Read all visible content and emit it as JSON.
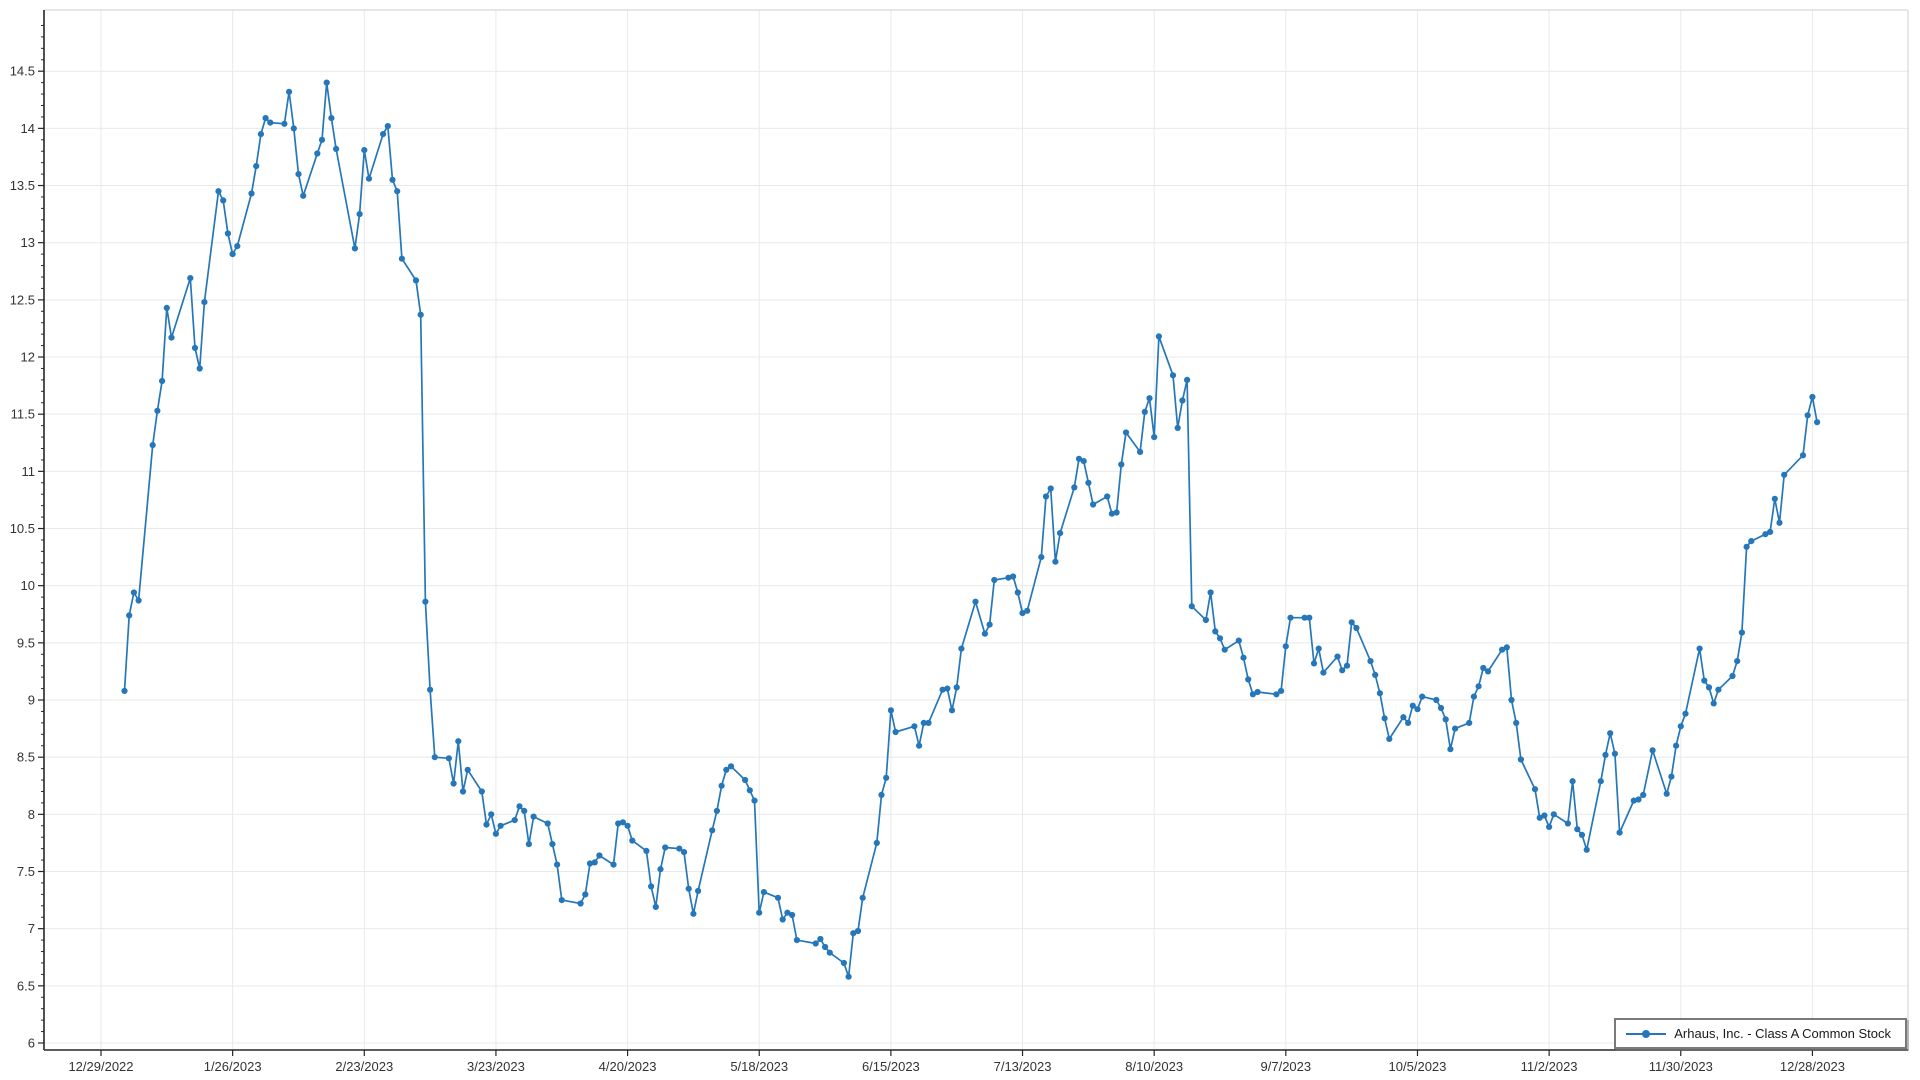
{
  "accent_color": "#2577b9",
  "grid_color": "#e9e9e9",
  "spine_color": "#262626",
  "frame_color": "#cfcfcf",
  "legend": {
    "label": "Arhaus, Inc. - Class A Common Stock"
  },
  "chart_data": {
    "type": "line",
    "title": "",
    "xlabel": "",
    "ylabel": "",
    "grid": true,
    "legend_position": "bottom-right",
    "ylim": [
      6,
      14.5
    ],
    "y_tick_step": 0.5,
    "y_ticks": [
      "6",
      "6.5",
      "7",
      "7.5",
      "8",
      "8.5",
      "9",
      "9.5",
      "10",
      "10.5",
      "11",
      "11.5",
      "12",
      "12.5",
      "13",
      "13.5",
      "14",
      "14.5"
    ],
    "x_ticks": [
      "12/29/2022",
      "1/26/2023",
      "2/23/2023",
      "3/23/2023",
      "4/20/2023",
      "5/18/2023",
      "6/15/2023",
      "7/13/2023",
      "8/10/2023",
      "9/7/2023",
      "10/5/2023",
      "11/2/2023",
      "11/30/2023",
      "12/28/2023"
    ],
    "series": [
      {
        "name": "Arhaus, Inc. - Class A Common Stock",
        "color": "#2577b9",
        "marker": "circle",
        "data": [
          [
            "1/3/2023",
            9.08
          ],
          [
            "1/4/2023",
            9.74
          ],
          [
            "1/5/2023",
            9.94
          ],
          [
            "1/6/2023",
            9.87
          ],
          [
            "1/9/2023",
            11.23
          ],
          [
            "1/10/2023",
            11.53
          ],
          [
            "1/11/2023",
            11.79
          ],
          [
            "1/12/2023",
            12.43
          ],
          [
            "1/13/2023",
            12.17
          ],
          [
            "1/17/2023",
            12.69
          ],
          [
            "1/18/2023",
            12.08
          ],
          [
            "1/19/2023",
            11.9
          ],
          [
            "1/20/2023",
            12.48
          ],
          [
            "1/23/2023",
            13.45
          ],
          [
            "1/24/2023",
            13.37
          ],
          [
            "1/25/2023",
            13.08
          ],
          [
            "1/26/2023",
            12.9
          ],
          [
            "1/27/2023",
            12.97
          ],
          [
            "1/30/2023",
            13.43
          ],
          [
            "1/31/2023",
            13.67
          ],
          [
            "2/1/2023",
            13.95
          ],
          [
            "2/2/2023",
            14.09
          ],
          [
            "2/3/2023",
            14.05
          ],
          [
            "2/6/2023",
            14.04
          ],
          [
            "2/7/2023",
            14.32
          ],
          [
            "2/8/2023",
            14.0
          ],
          [
            "2/9/2023",
            13.6
          ],
          [
            "2/10/2023",
            13.41
          ],
          [
            "2/13/2023",
            13.78
          ],
          [
            "2/14/2023",
            13.9
          ],
          [
            "2/15/2023",
            14.4
          ],
          [
            "2/16/2023",
            14.09
          ],
          [
            "2/17/2023",
            13.82
          ],
          [
            "2/21/2023",
            12.95
          ],
          [
            "2/22/2023",
            13.25
          ],
          [
            "2/23/2023",
            13.81
          ],
          [
            "2/24/2023",
            13.56
          ],
          [
            "2/27/2023",
            13.95
          ],
          [
            "2/28/2023",
            14.02
          ],
          [
            "3/1/2023",
            13.55
          ],
          [
            "3/2/2023",
            13.45
          ],
          [
            "3/3/2023",
            12.86
          ],
          [
            "3/6/2023",
            12.67
          ],
          [
            "3/7/2023",
            12.37
          ],
          [
            "3/8/2023",
            9.86
          ],
          [
            "3/9/2023",
            9.09
          ],
          [
            "3/10/2023",
            8.5
          ],
          [
            "3/13/2023",
            8.49
          ],
          [
            "3/14/2023",
            8.27
          ],
          [
            "3/15/2023",
            8.64
          ],
          [
            "3/16/2023",
            8.2
          ],
          [
            "3/17/2023",
            8.39
          ],
          [
            "3/20/2023",
            8.2
          ],
          [
            "3/21/2023",
            7.91
          ],
          [
            "3/22/2023",
            8.0
          ],
          [
            "3/23/2023",
            7.83
          ],
          [
            "3/24/2023",
            7.9
          ],
          [
            "3/27/2023",
            7.95
          ],
          [
            "3/28/2023",
            8.07
          ],
          [
            "3/29/2023",
            8.03
          ],
          [
            "3/30/2023",
            7.74
          ],
          [
            "3/31/2023",
            7.98
          ],
          [
            "4/3/2023",
            7.92
          ],
          [
            "4/4/2023",
            7.74
          ],
          [
            "4/5/2023",
            7.56
          ],
          [
            "4/6/2023",
            7.25
          ],
          [
            "4/10/2023",
            7.22
          ],
          [
            "4/11/2023",
            7.3
          ],
          [
            "4/12/2023",
            7.57
          ],
          [
            "4/13/2023",
            7.58
          ],
          [
            "4/14/2023",
            7.64
          ],
          [
            "4/17/2023",
            7.56
          ],
          [
            "4/18/2023",
            7.92
          ],
          [
            "4/19/2023",
            7.93
          ],
          [
            "4/20/2023",
            7.9
          ],
          [
            "4/21/2023",
            7.77
          ],
          [
            "4/24/2023",
            7.68
          ],
          [
            "4/25/2023",
            7.37
          ],
          [
            "4/26/2023",
            7.19
          ],
          [
            "4/27/2023",
            7.52
          ],
          [
            "4/28/2023",
            7.71
          ],
          [
            "5/1/2023",
            7.7
          ],
          [
            "5/2/2023",
            7.67
          ],
          [
            "5/3/2023",
            7.35
          ],
          [
            "5/4/2023",
            7.13
          ],
          [
            "5/5/2023",
            7.33
          ],
          [
            "5/8/2023",
            7.86
          ],
          [
            "5/9/2023",
            8.03
          ],
          [
            "5/10/2023",
            8.25
          ],
          [
            "5/11/2023",
            8.39
          ],
          [
            "5/12/2023",
            8.42
          ],
          [
            "5/15/2023",
            8.3
          ],
          [
            "5/16/2023",
            8.21
          ],
          [
            "5/17/2023",
            8.12
          ],
          [
            "5/18/2023",
            7.14
          ],
          [
            "5/19/2023",
            7.32
          ],
          [
            "5/22/2023",
            7.27
          ],
          [
            "5/23/2023",
            7.08
          ],
          [
            "5/24/2023",
            7.14
          ],
          [
            "5/25/2023",
            7.12
          ],
          [
            "5/26/2023",
            6.9
          ],
          [
            "5/30/2023",
            6.87
          ],
          [
            "5/31/2023",
            6.91
          ],
          [
            "6/1/2023",
            6.84
          ],
          [
            "6/2/2023",
            6.79
          ],
          [
            "6/5/2023",
            6.7
          ],
          [
            "6/6/2023",
            6.58
          ],
          [
            "6/7/2023",
            6.96
          ],
          [
            "6/8/2023",
            6.98
          ],
          [
            "6/9/2023",
            7.27
          ],
          [
            "6/12/2023",
            7.75
          ],
          [
            "6/13/2023",
            8.17
          ],
          [
            "6/14/2023",
            8.32
          ],
          [
            "6/15/2023",
            8.91
          ],
          [
            "6/16/2023",
            8.72
          ],
          [
            "6/20/2023",
            8.77
          ],
          [
            "6/21/2023",
            8.6
          ],
          [
            "6/22/2023",
            8.8
          ],
          [
            "6/23/2023",
            8.8
          ],
          [
            "6/26/2023",
            9.09
          ],
          [
            "6/27/2023",
            9.1
          ],
          [
            "6/28/2023",
            8.91
          ],
          [
            "6/29/2023",
            9.11
          ],
          [
            "6/30/2023",
            9.45
          ],
          [
            "7/3/2023",
            9.86
          ],
          [
            "7/5/2023",
            9.58
          ],
          [
            "7/6/2023",
            9.66
          ],
          [
            "7/7/2023",
            10.05
          ],
          [
            "7/10/2023",
            10.07
          ],
          [
            "7/11/2023",
            10.08
          ],
          [
            "7/12/2023",
            9.94
          ],
          [
            "7/13/2023",
            9.76
          ],
          [
            "7/14/2023",
            9.78
          ],
          [
            "7/17/2023",
            10.25
          ],
          [
            "7/18/2023",
            10.78
          ],
          [
            "7/19/2023",
            10.85
          ],
          [
            "7/20/2023",
            10.21
          ],
          [
            "7/21/2023",
            10.46
          ],
          [
            "7/24/2023",
            10.86
          ],
          [
            "7/25/2023",
            11.11
          ],
          [
            "7/26/2023",
            11.09
          ],
          [
            "7/27/2023",
            10.9
          ],
          [
            "7/28/2023",
            10.71
          ],
          [
            "7/31/2023",
            10.78
          ],
          [
            "8/1/2023",
            10.63
          ],
          [
            "8/2/2023",
            10.64
          ],
          [
            "8/3/2023",
            11.06
          ],
          [
            "8/4/2023",
            11.34
          ],
          [
            "8/7/2023",
            11.17
          ],
          [
            "8/8/2023",
            11.52
          ],
          [
            "8/9/2023",
            11.64
          ],
          [
            "8/10/2023",
            11.3
          ],
          [
            "8/11/2023",
            12.18
          ],
          [
            "8/14/2023",
            11.84
          ],
          [
            "8/15/2023",
            11.38
          ],
          [
            "8/16/2023",
            11.62
          ],
          [
            "8/17/2023",
            11.8
          ],
          [
            "8/18/2023",
            9.82
          ],
          [
            "8/21/2023",
            9.7
          ],
          [
            "8/22/2023",
            9.94
          ],
          [
            "8/23/2023",
            9.6
          ],
          [
            "8/24/2023",
            9.54
          ],
          [
            "8/25/2023",
            9.44
          ],
          [
            "8/28/2023",
            9.52
          ],
          [
            "8/29/2023",
            9.37
          ],
          [
            "8/30/2023",
            9.18
          ],
          [
            "8/31/2023",
            9.05
          ],
          [
            "9/1/2023",
            9.07
          ],
          [
            "9/5/2023",
            9.05
          ],
          [
            "9/6/2023",
            9.08
          ],
          [
            "9/7/2023",
            9.47
          ],
          [
            "9/8/2023",
            9.72
          ],
          [
            "9/11/2023",
            9.72
          ],
          [
            "9/12/2023",
            9.72
          ],
          [
            "9/13/2023",
            9.32
          ],
          [
            "9/14/2023",
            9.45
          ],
          [
            "9/15/2023",
            9.24
          ],
          [
            "9/18/2023",
            9.38
          ],
          [
            "9/19/2023",
            9.26
          ],
          [
            "9/20/2023",
            9.3
          ],
          [
            "9/21/2023",
            9.68
          ],
          [
            "9/22/2023",
            9.63
          ],
          [
            "9/25/2023",
            9.34
          ],
          [
            "9/26/2023",
            9.22
          ],
          [
            "9/27/2023",
            9.06
          ],
          [
            "9/28/2023",
            8.84
          ],
          [
            "9/29/2023",
            8.66
          ],
          [
            "10/2/2023",
            8.85
          ],
          [
            "10/3/2023",
            8.8
          ],
          [
            "10/4/2023",
            8.95
          ],
          [
            "10/5/2023",
            8.92
          ],
          [
            "10/6/2023",
            9.03
          ],
          [
            "10/9/2023",
            9.0
          ],
          [
            "10/10/2023",
            8.93
          ],
          [
            "10/11/2023",
            8.83
          ],
          [
            "10/12/2023",
            8.57
          ],
          [
            "10/13/2023",
            8.75
          ],
          [
            "10/16/2023",
            8.8
          ],
          [
            "10/17/2023",
            9.03
          ],
          [
            "10/18/2023",
            9.12
          ],
          [
            "10/19/2023",
            9.28
          ],
          [
            "10/20/2023",
            9.25
          ],
          [
            "10/23/2023",
            9.44
          ],
          [
            "10/24/2023",
            9.46
          ],
          [
            "10/25/2023",
            9.0
          ],
          [
            "10/26/2023",
            8.8
          ],
          [
            "10/27/2023",
            8.48
          ],
          [
            "10/30/2023",
            8.22
          ],
          [
            "10/31/2023",
            7.97
          ],
          [
            "11/1/2023",
            7.99
          ],
          [
            "11/2/2023",
            7.89
          ],
          [
            "11/3/2023",
            8.0
          ],
          [
            "11/6/2023",
            7.92
          ],
          [
            "11/7/2023",
            8.29
          ],
          [
            "11/8/2023",
            7.87
          ],
          [
            "11/9/2023",
            7.82
          ],
          [
            "11/10/2023",
            7.69
          ],
          [
            "11/13/2023",
            8.29
          ],
          [
            "11/14/2023",
            8.52
          ],
          [
            "11/15/2023",
            8.71
          ],
          [
            "11/16/2023",
            8.53
          ],
          [
            "11/17/2023",
            7.84
          ],
          [
            "11/20/2023",
            8.12
          ],
          [
            "11/21/2023",
            8.13
          ],
          [
            "11/22/2023",
            8.17
          ],
          [
            "11/24/2023",
            8.56
          ],
          [
            "11/27/2023",
            8.18
          ],
          [
            "11/28/2023",
            8.33
          ],
          [
            "11/29/2023",
            8.6
          ],
          [
            "11/30/2023",
            8.77
          ],
          [
            "12/1/2023",
            8.88
          ],
          [
            "12/4/2023",
            9.45
          ],
          [
            "12/5/2023",
            9.17
          ],
          [
            "12/6/2023",
            9.11
          ],
          [
            "12/7/2023",
            8.97
          ],
          [
            "12/8/2023",
            9.09
          ],
          [
            "12/11/2023",
            9.21
          ],
          [
            "12/12/2023",
            9.34
          ],
          [
            "12/13/2023",
            9.59
          ],
          [
            "12/14/2023",
            10.34
          ],
          [
            "12/15/2023",
            10.39
          ],
          [
            "12/18/2023",
            10.45
          ],
          [
            "12/19/2023",
            10.47
          ],
          [
            "12/20/2023",
            10.76
          ],
          [
            "12/21/2023",
            10.55
          ],
          [
            "12/22/2023",
            10.97
          ],
          [
            "12/26/2023",
            11.14
          ],
          [
            "12/27/2023",
            11.49
          ],
          [
            "12/28/2023",
            11.65
          ],
          [
            "12/29/2023",
            11.43
          ]
        ]
      }
    ]
  }
}
